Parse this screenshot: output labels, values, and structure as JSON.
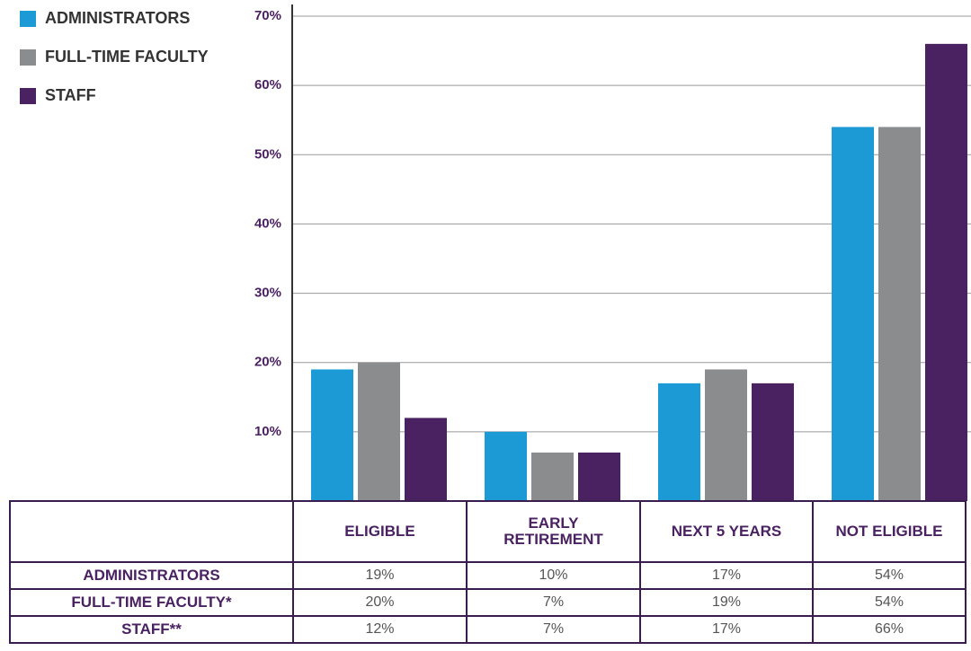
{
  "chart_data": {
    "type": "bar",
    "categories": [
      "ELIGIBLE",
      "EARLY RETIREMENT",
      "NEXT 5 YEARS",
      "NOT ELIGIBLE"
    ],
    "series": [
      {
        "name": "ADMINISTRATORS",
        "color": "#1b9ad6",
        "values": [
          19,
          10,
          17,
          54
        ],
        "value_labels": [
          "19%",
          "10%",
          "17%",
          "54%"
        ]
      },
      {
        "name": "FULL-TIME FACULTY",
        "color": "#8a8c8e",
        "values": [
          20,
          7,
          19,
          54
        ],
        "value_labels": [
          "20%",
          "7%",
          "19%",
          "54%"
        ]
      },
      {
        "name": "STAFF",
        "color": "#4a2161",
        "values": [
          12,
          7,
          17,
          66
        ],
        "value_labels": [
          "12%",
          "7%",
          "17%",
          "66%"
        ]
      }
    ],
    "table_row_labels": [
      "ADMINISTRATORS",
      "FULL-TIME FACULTY*",
      "STAFF**"
    ],
    "ylim": [
      0,
      70
    ],
    "yticks": [
      {
        "value": 10,
        "label": "10%"
      },
      {
        "value": 20,
        "label": "20%"
      },
      {
        "value": 30,
        "label": "30%"
      },
      {
        "value": 40,
        "label": "40%"
      },
      {
        "value": 50,
        "label": "50%"
      },
      {
        "value": 60,
        "label": "60%"
      },
      {
        "value": 70,
        "label": "70%"
      }
    ],
    "grid": true,
    "legend": "top-left"
  }
}
